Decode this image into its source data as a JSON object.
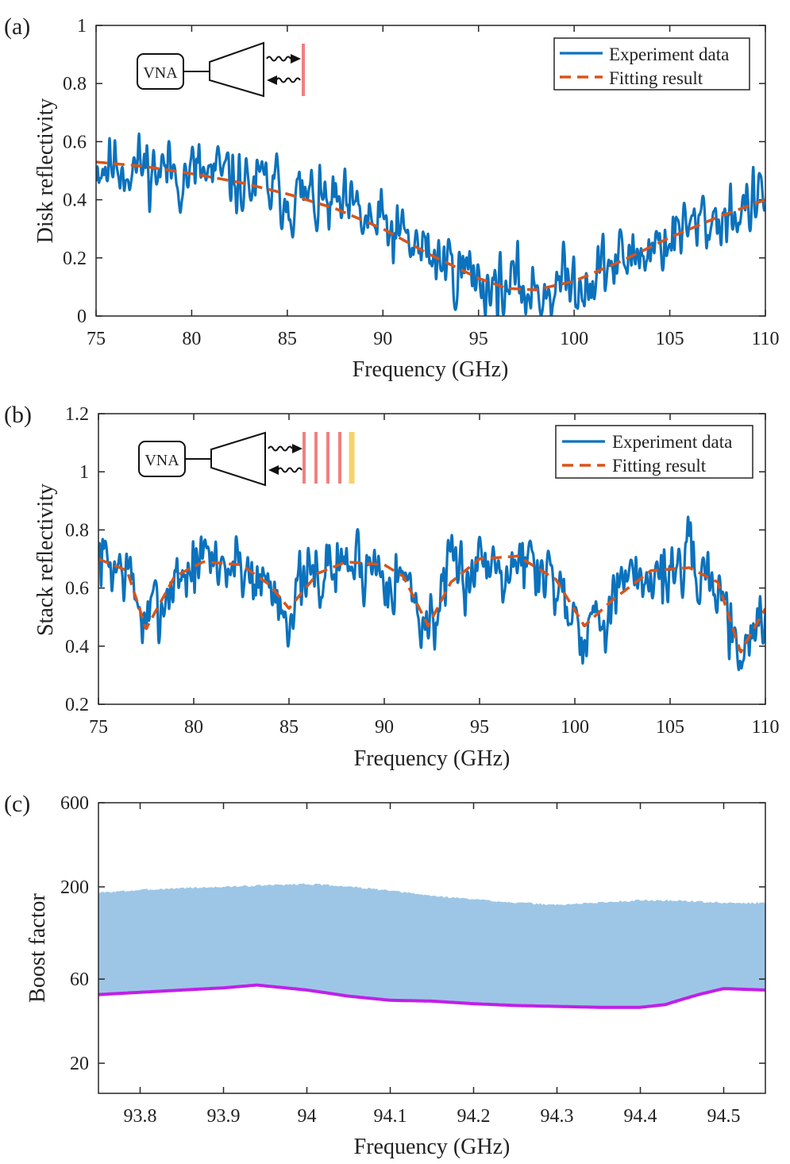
{
  "colors": {
    "experiment": "#0b72bd",
    "fit": "#d95319",
    "disk": "#f08080",
    "mirror": "#f5d26a",
    "band": "#9dc6e6",
    "lower": "#c020e8",
    "axis": "#262626"
  },
  "chart_data": [
    {
      "id": "a",
      "type": "line",
      "panel_label": "(a)",
      "xlabel": "Frequency (GHz)",
      "ylabel": "Disk reflectivity",
      "xlim": [
        75,
        110
      ],
      "ylim": [
        0,
        1
      ],
      "xticks": [
        75,
        80,
        85,
        90,
        95,
        100,
        105,
        110
      ],
      "yticks": [
        0,
        0.2,
        0.4,
        0.6,
        0.8,
        1
      ],
      "ytick_labels": [
        "0",
        "0.2",
        "0.4",
        "0.6",
        "0.8",
        "1"
      ],
      "legend": {
        "position": "top-right",
        "entries": [
          "Experiment data",
          "Fitting result"
        ]
      },
      "inset": {
        "label": "VNA",
        "disks": 1,
        "mirror": false
      },
      "fit_series": {
        "name": "Fitting result",
        "x": [
          75,
          77.5,
          80,
          82.5,
          85,
          87.5,
          90,
          92.5,
          95,
          96.5,
          98,
          100,
          102.5,
          105,
          107.5,
          110
        ],
        "y": [
          0.53,
          0.515,
          0.49,
          0.46,
          0.42,
          0.37,
          0.3,
          0.21,
          0.13,
          0.095,
          0.09,
          0.12,
          0.19,
          0.27,
          0.34,
          0.4
        ]
      },
      "noise": {
        "seed": 11,
        "amp": 0.095,
        "step": 0.07
      }
    },
    {
      "id": "b",
      "type": "line",
      "panel_label": "(b)",
      "xlabel": "Frequency (GHz)",
      "ylabel": "Stack reflectivity",
      "xlim": [
        75,
        110
      ],
      "ylim": [
        0.2,
        1.2
      ],
      "xticks": [
        75,
        80,
        85,
        90,
        95,
        100,
        105,
        110
      ],
      "yticks": [
        0.2,
        0.4,
        0.6,
        0.8,
        1,
        1.2
      ],
      "ytick_labels": [
        "0.2",
        "0.4",
        "0.6",
        "0.8",
        "1",
        "1.2"
      ],
      "legend": {
        "position": "top-right",
        "entries": [
          "Experiment data",
          "Fitting result"
        ]
      },
      "inset": {
        "label": "VNA",
        "disks": 4,
        "mirror": true
      },
      "fit_series": {
        "name": "Fitting result",
        "x": [
          75,
          76.5,
          77.5,
          79,
          80.5,
          82.5,
          84,
          85,
          86.5,
          88,
          90,
          91,
          92.3,
          93.5,
          95,
          97,
          99,
          100.5,
          102,
          104,
          106,
          107.5,
          108.7,
          110
        ],
        "y": [
          0.7,
          0.66,
          0.46,
          0.64,
          0.69,
          0.68,
          0.61,
          0.53,
          0.65,
          0.69,
          0.68,
          0.64,
          0.47,
          0.62,
          0.7,
          0.71,
          0.63,
          0.47,
          0.56,
          0.66,
          0.67,
          0.62,
          0.38,
          0.53
        ]
      },
      "noise": {
        "seed": 7,
        "amp": 0.1,
        "step": 0.07
      }
    },
    {
      "id": "c",
      "type": "area",
      "panel_label": "(c)",
      "xlabel": "Frequency (GHz)",
      "ylabel": "Boost factor",
      "yscale": "log",
      "xlim": [
        93.75,
        94.55
      ],
      "ylim": [
        13.5,
        600
      ],
      "xticks": [
        93.8,
        93.9,
        94,
        94.1,
        94.2,
        94.3,
        94.4,
        94.5
      ],
      "xtick_labels": [
        "93.8",
        "93.9",
        "94",
        "94.1",
        "94.2",
        "94.3",
        "94.4",
        "94.5"
      ],
      "yticks": [
        20,
        60,
        200,
        600
      ],
      "ytick_labels": [
        "20",
        "60",
        "200",
        "600"
      ],
      "upper": {
        "x": [
          93.75,
          93.8,
          93.85,
          93.9,
          93.95,
          94.0,
          94.05,
          94.1,
          94.15,
          94.2,
          94.25,
          94.3,
          94.35,
          94.4,
          94.45,
          94.5,
          94.55
        ],
        "y": [
          185,
          192,
          197,
          200,
          204,
          208,
          201,
          190,
          178,
          170,
          163,
          158,
          163,
          168,
          167,
          162,
          162
        ]
      },
      "lower": {
        "name": "lower-bound",
        "x": [
          93.75,
          93.8,
          93.85,
          93.9,
          93.94,
          94.0,
          94.05,
          94.1,
          94.15,
          94.2,
          94.25,
          94.3,
          94.35,
          94.4,
          94.43,
          94.47,
          94.5,
          94.55
        ],
        "y": [
          49,
          50.5,
          52,
          53.5,
          55.5,
          52,
          48,
          45.5,
          45,
          43.5,
          42.5,
          42,
          41.5,
          41.5,
          43,
          49,
          53,
          52
        ]
      }
    }
  ]
}
